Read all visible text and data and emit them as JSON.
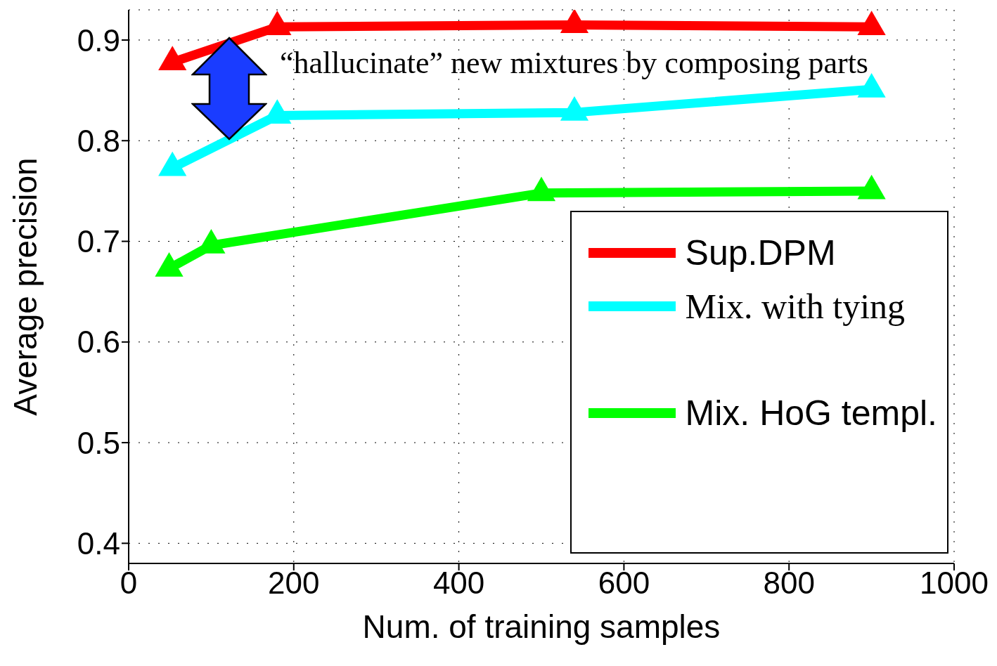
{
  "chart_data": {
    "type": "line",
    "xlabel": "Num. of training samples",
    "ylabel": "Average precision",
    "xlim": [
      0,
      1000
    ],
    "xticks": [
      0,
      200,
      400,
      600,
      800,
      1000
    ],
    "ylim": [
      0.38,
      0.93
    ],
    "yticks": [
      0.4,
      0.5,
      0.6,
      0.7,
      0.8,
      0.9
    ],
    "grid": true,
    "legend": "bottom right",
    "marker": "triangle",
    "line_style": "solid",
    "annotations": [
      "“hallucinate” new mixtures by composing parts"
    ],
    "series": [
      {
        "name": "Sup.DPM",
        "color": "#ff0000",
        "x": [
          53,
          180,
          540,
          900
        ],
        "values": [
          0.878,
          0.913,
          0.915,
          0.913
        ]
      },
      {
        "name": "Mix. with tying",
        "color": "#00ffff",
        "x": [
          53,
          180,
          540,
          900
        ],
        "values": [
          0.773,
          0.825,
          0.828,
          0.851
        ]
      },
      {
        "name": "Mix. HoG templ.",
        "color": "#00ff00",
        "x": [
          49,
          100,
          500,
          900
        ],
        "values": [
          0.673,
          0.696,
          0.748,
          0.75
        ]
      }
    ]
  }
}
